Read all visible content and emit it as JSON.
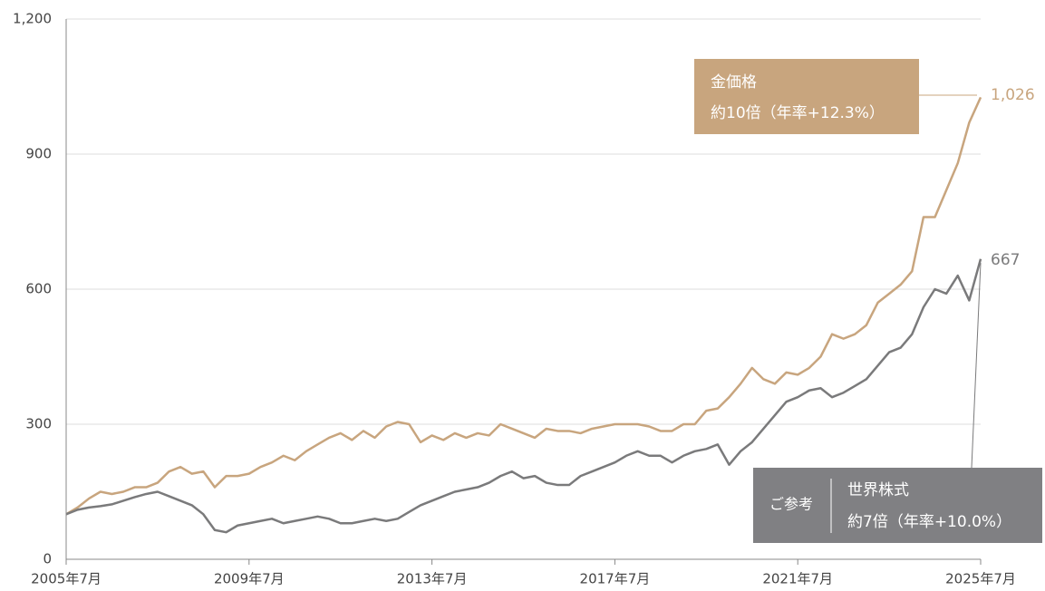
{
  "chart_data": {
    "type": "line",
    "categories": [
      "2005年7月",
      null,
      null,
      null,
      null,
      null,
      null,
      null,
      null,
      null,
      null,
      null,
      null,
      null,
      null,
      null,
      "2009年7月",
      null,
      null,
      null,
      null,
      null,
      null,
      null,
      null,
      null,
      null,
      null,
      null,
      null,
      null,
      null,
      "2013年7月",
      null,
      null,
      null,
      null,
      null,
      null,
      null,
      null,
      null,
      null,
      null,
      null,
      null,
      null,
      null,
      "2017年7月",
      null,
      null,
      null,
      null,
      null,
      null,
      null,
      null,
      null,
      null,
      null,
      null,
      null,
      null,
      null,
      "2021年7月",
      null,
      null,
      null,
      null,
      null,
      null,
      null,
      null,
      null,
      null,
      null,
      null,
      null,
      null,
      null,
      "2025年7月"
    ],
    "ylim": [
      0,
      1200
    ],
    "yticks": [
      0,
      300,
      600,
      900,
      {
        "value": 1200,
        "label": "1,200"
      }
    ],
    "grid": true,
    "series": [
      {
        "name": "金価格",
        "color": "#c8a57e",
        "values": [
          100,
          115,
          135,
          150,
          145,
          150,
          160,
          160,
          170,
          195,
          205,
          190,
          195,
          160,
          185,
          185,
          190,
          205,
          215,
          230,
          220,
          240,
          255,
          270,
          280,
          265,
          285,
          270,
          295,
          305,
          300,
          260,
          275,
          265,
          280,
          270,
          280,
          275,
          300,
          290,
          280,
          270,
          290,
          285,
          285,
          280,
          290,
          295,
          300,
          300,
          300,
          295,
          285,
          285,
          300,
          300,
          330,
          335,
          360,
          390,
          425,
          400,
          390,
          415,
          410,
          425,
          450,
          500,
          490,
          500,
          520,
          570,
          590,
          610,
          640,
          760,
          760,
          820,
          880,
          970,
          1026
        ],
        "value_labels": [
          null,
          null,
          null,
          null,
          null,
          null,
          null,
          null,
          null,
          null,
          null,
          null,
          null,
          null,
          null,
          null,
          null,
          null,
          null,
          null,
          null,
          null,
          null,
          null,
          null,
          null,
          null,
          null,
          null,
          null,
          null,
          null,
          null,
          null,
          null,
          null,
          null,
          null,
          null,
          null,
          null,
          null,
          null,
          null,
          null,
          null,
          null,
          null,
          null,
          null,
          null,
          null,
          null,
          null,
          null,
          null,
          null,
          null,
          null,
          null,
          null,
          null,
          null,
          null,
          null,
          null,
          null,
          null,
          null,
          null,
          null,
          null,
          null,
          null,
          null,
          null,
          null,
          null,
          null,
          null,
          "1,026"
        ],
        "annotation": {
          "title": "金価格",
          "text": "約10倍（年率+12.3%）"
        }
      },
      {
        "name": "世界株式",
        "color": "#7a7a7b",
        "values": [
          100,
          110,
          115,
          118,
          122,
          130,
          138,
          145,
          150,
          140,
          130,
          120,
          100,
          65,
          60,
          75,
          80,
          85,
          90,
          80,
          85,
          90,
          95,
          90,
          80,
          80,
          85,
          90,
          85,
          90,
          105,
          120,
          130,
          140,
          150,
          155,
          160,
          170,
          185,
          195,
          180,
          185,
          170,
          165,
          165,
          185,
          195,
          205,
          215,
          230,
          240,
          230,
          230,
          215,
          230,
          240,
          245,
          255,
          210,
          240,
          260,
          290,
          320,
          350,
          360,
          375,
          380,
          360,
          370,
          385,
          400,
          430,
          460,
          470,
          500,
          560,
          600,
          590,
          630,
          575,
          667
        ],
        "annotation": {
          "note": "ご参考",
          "title": "世界株式",
          "text": "約7倍（年率+10.0%）"
        }
      }
    ]
  }
}
